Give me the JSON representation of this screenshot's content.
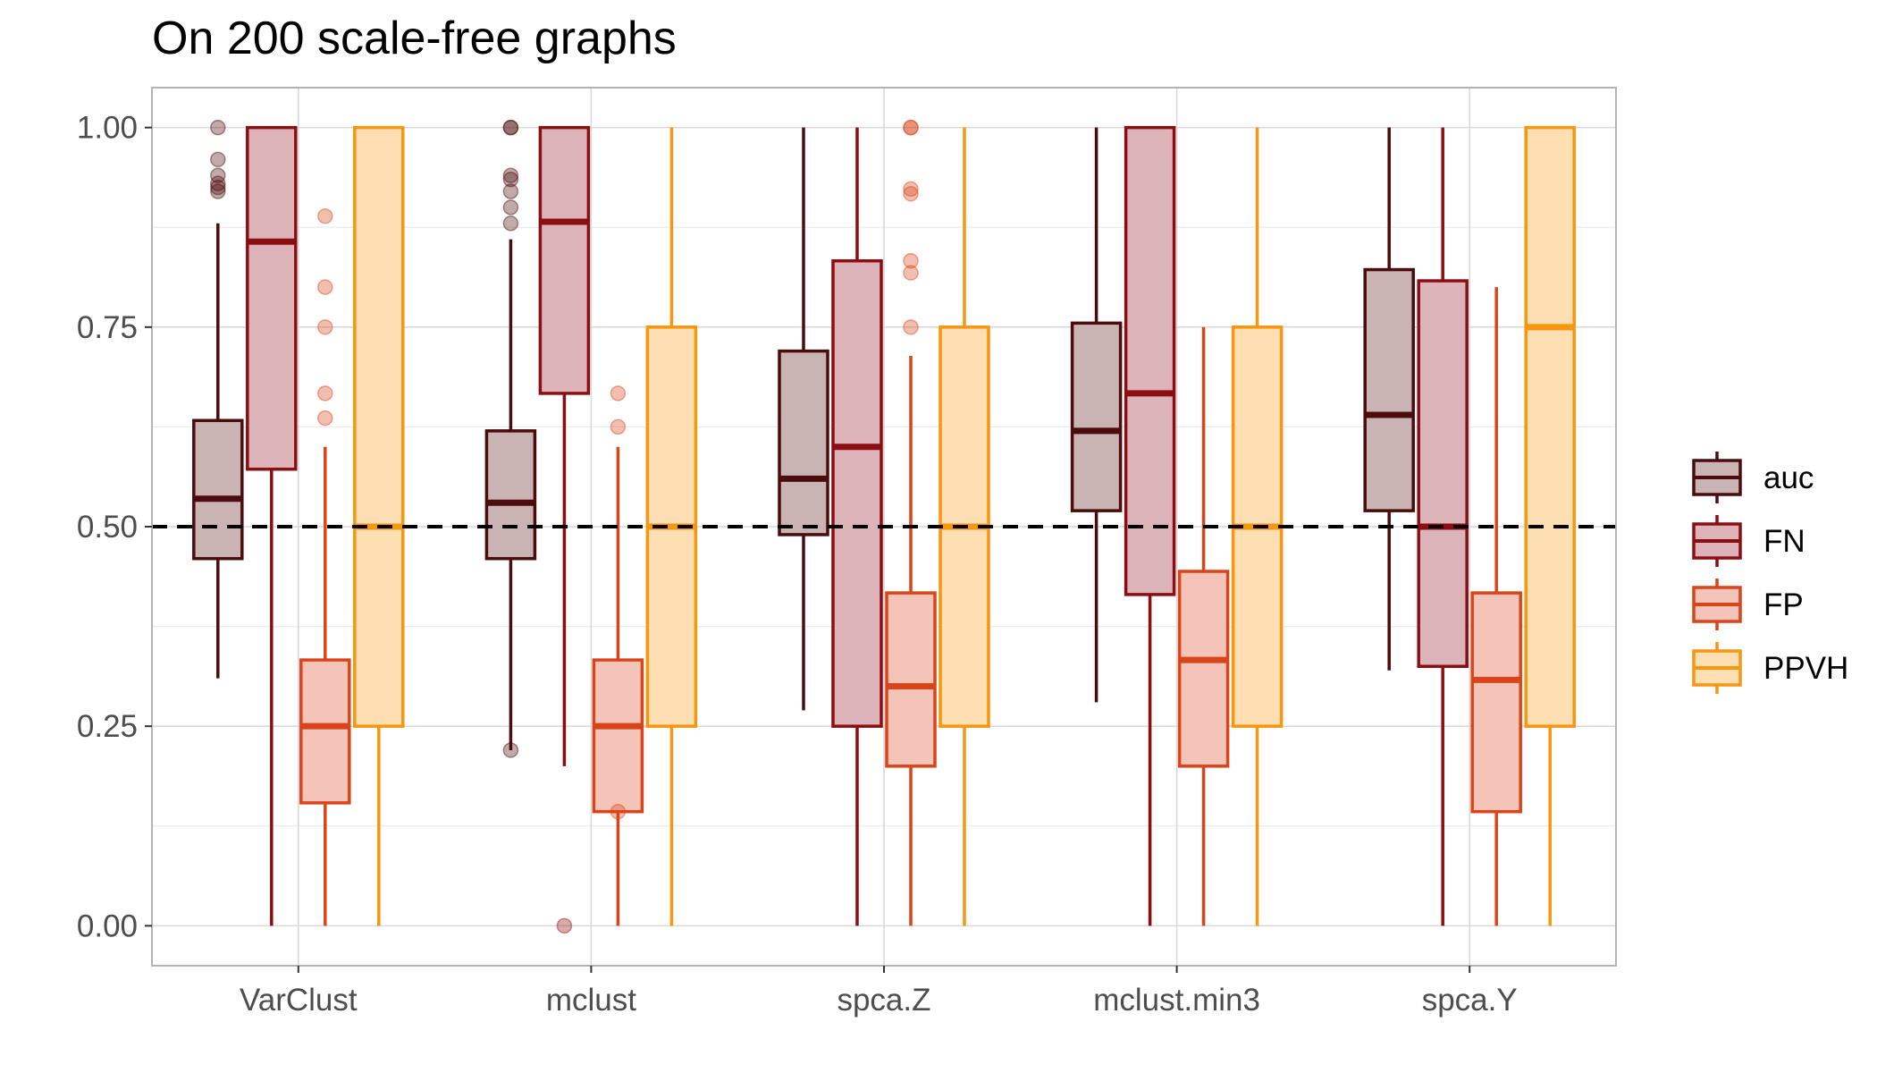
{
  "chart_data": {
    "type": "boxplot",
    "title": "On 200 scale-free graphs",
    "xlabel": "",
    "ylabel": "",
    "ylim": [
      -0.05,
      1.05
    ],
    "y_ticks": [
      "0.00",
      "0.25",
      "0.50",
      "0.75",
      "1.00"
    ],
    "y_tick_values": [
      0,
      0.25,
      0.5,
      0.75,
      1.0
    ],
    "grid": true,
    "legend_position": "right",
    "reference_line": {
      "y": 0.5,
      "style": "dashed",
      "color": "#000000"
    },
    "categories": [
      "VarClust",
      "mclust",
      "spca.Z",
      "mclust.min3",
      "spca.Y"
    ],
    "series": [
      {
        "name": "auc",
        "color": "#4a0c0c",
        "fill": "#c9b3b3",
        "boxes": [
          {
            "whisker_low": 0.31,
            "q1": 0.46,
            "median": 0.535,
            "q3": 0.633,
            "whisker_high": 0.88,
            "outliers": [
              0.92,
              0.925,
              0.93,
              0.94,
              0.96,
              1.0
            ]
          },
          {
            "whisker_low": 0.22,
            "q1": 0.46,
            "median": 0.53,
            "q3": 0.62,
            "whisker_high": 0.86,
            "outliers": [
              0.22,
              0.88,
              0.9,
              0.92,
              0.935,
              0.94,
              1.0,
              1.0
            ]
          },
          {
            "whisker_low": 0.27,
            "q1": 0.49,
            "median": 0.56,
            "q3": 0.72,
            "whisker_high": 1.0,
            "outliers": []
          },
          {
            "whisker_low": 0.28,
            "q1": 0.52,
            "median": 0.62,
            "q3": 0.755,
            "whisker_high": 1.0,
            "outliers": []
          },
          {
            "whisker_low": 0.32,
            "q1": 0.52,
            "median": 0.64,
            "q3": 0.822,
            "whisker_high": 1.0,
            "outliers": []
          }
        ]
      },
      {
        "name": "FN",
        "color": "#8b0e12",
        "fill": "#dcb3b8",
        "boxes": [
          {
            "whisker_low": 0.0,
            "q1": 0.572,
            "median": 0.857,
            "q3": 1.0,
            "whisker_high": 1.0,
            "outliers": []
          },
          {
            "whisker_low": 0.2,
            "q1": 0.667,
            "median": 0.882,
            "q3": 1.0,
            "whisker_high": 1.0,
            "outliers": [
              0.0
            ]
          },
          {
            "whisker_low": 0.0,
            "q1": 0.25,
            "median": 0.6,
            "q3": 0.833,
            "whisker_high": 1.0,
            "outliers": []
          },
          {
            "whisker_low": 0.0,
            "q1": 0.415,
            "median": 0.667,
            "q3": 1.0,
            "whisker_high": 1.0,
            "outliers": []
          },
          {
            "whisker_low": 0.0,
            "q1": 0.325,
            "median": 0.5,
            "q3": 0.808,
            "whisker_high": 1.0,
            "outliers": []
          }
        ]
      },
      {
        "name": "FP",
        "color": "#d9441a",
        "fill": "#f5c4b8",
        "boxes": [
          {
            "whisker_low": 0.0,
            "q1": 0.154,
            "median": 0.25,
            "q3": 0.333,
            "whisker_high": 0.6,
            "outliers": [
              0.636,
              0.667,
              0.75,
              0.8,
              0.889
            ]
          },
          {
            "whisker_low": 0.0,
            "q1": 0.143,
            "median": 0.25,
            "q3": 0.333,
            "whisker_high": 0.6,
            "outliers": [
              0.143,
              0.625,
              0.667
            ]
          },
          {
            "whisker_low": 0.0,
            "q1": 0.2,
            "median": 0.3,
            "q3": 0.417,
            "whisker_high": 0.714,
            "outliers": [
              0.75,
              0.818,
              0.833,
              0.917,
              0.923,
              1.0,
              1.0
            ]
          },
          {
            "whisker_low": 0.0,
            "q1": 0.2,
            "median": 0.333,
            "q3": 0.444,
            "whisker_high": 0.75,
            "outliers": []
          },
          {
            "whisker_low": 0.0,
            "q1": 0.143,
            "median": 0.308,
            "q3": 0.417,
            "whisker_high": 0.8,
            "outliers": []
          }
        ]
      },
      {
        "name": "PPVH",
        "color": "#f7960f",
        "fill": "#fddfb3",
        "boxes": [
          {
            "whisker_low": 0.0,
            "q1": 0.25,
            "median": 0.5,
            "q3": 1.0,
            "whisker_high": 1.0,
            "outliers": []
          },
          {
            "whisker_low": 0.0,
            "q1": 0.25,
            "median": 0.5,
            "q3": 0.75,
            "whisker_high": 1.0,
            "outliers": []
          },
          {
            "whisker_low": 0.0,
            "q1": 0.25,
            "median": 0.5,
            "q3": 0.75,
            "whisker_high": 1.0,
            "outliers": []
          },
          {
            "whisker_low": 0.0,
            "q1": 0.25,
            "median": 0.5,
            "q3": 0.75,
            "whisker_high": 1.0,
            "outliers": []
          },
          {
            "whisker_low": 0.0,
            "q1": 0.25,
            "median": 0.75,
            "q3": 1.0,
            "whisker_high": 1.0,
            "outliers": []
          }
        ]
      }
    ]
  }
}
